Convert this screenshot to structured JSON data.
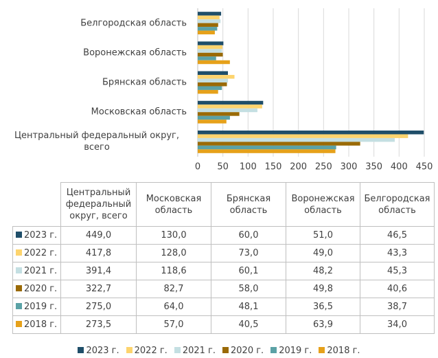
{
  "chart_data": {
    "type": "bar",
    "orientation": "horizontal",
    "categories": [
      "Центральный федеральный округ, всего",
      "Московская область",
      "Брянская область",
      "Воронежская область",
      "Белгородская область"
    ],
    "series": [
      {
        "name": "2023 г.",
        "color": "#1f4e69",
        "values": [
          449.0,
          130.0,
          60.0,
          51.0,
          46.5
        ],
        "value_labels": [
          "449,0",
          "130,0",
          "60,0",
          "51,0",
          "46,5"
        ]
      },
      {
        "name": "2022 г.",
        "color": "#fdd46e",
        "values": [
          417.8,
          128.0,
          73.0,
          49.0,
          43.3
        ],
        "value_labels": [
          "417,8",
          "128,0",
          "73,0",
          "49,0",
          "43,3"
        ]
      },
      {
        "name": "2021 г.",
        "color": "#c4dfe2",
        "values": [
          391.4,
          118.6,
          60.1,
          48.2,
          45.3
        ],
        "value_labels": [
          "391,4",
          "118,6",
          "60,1",
          "48,2",
          "45,3"
        ]
      },
      {
        "name": "2020 г.",
        "color": "#9a6a06",
        "values": [
          322.7,
          82.7,
          58.0,
          49.8,
          40.6
        ],
        "value_labels": [
          "322,7",
          "82,7",
          "58,0",
          "49,8",
          "40,6"
        ]
      },
      {
        "name": "2019 г.",
        "color": "#5ba2a6",
        "values": [
          275.0,
          64.0,
          48.1,
          36.5,
          38.7
        ],
        "value_labels": [
          "275,0",
          "64,0",
          "48,1",
          "36,5",
          "38,7"
        ]
      },
      {
        "name": "2018 г.",
        "color": "#e6a11a",
        "values": [
          273.5,
          57.0,
          40.5,
          63.9,
          34.0
        ],
        "value_labels": [
          "273,5",
          "57,0",
          "40,5",
          "63,9",
          "34,0"
        ]
      }
    ],
    "xlim": [
      0,
      450
    ],
    "xticks": [
      0,
      50,
      100,
      150,
      200,
      250,
      300,
      350,
      400,
      450
    ],
    "grid": true,
    "legend": "bottom"
  }
}
